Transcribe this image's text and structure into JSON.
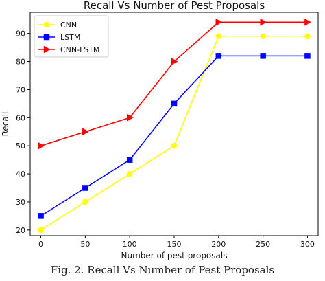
{
  "chart_data": {
    "type": "line",
    "title": "Recall Vs Number of Pest Proposals",
    "xlabel": "Number of pest proposals",
    "ylabel": "Recall",
    "x": [
      0,
      50,
      100,
      150,
      200,
      250,
      300
    ],
    "xlim": [
      -12,
      312
    ],
    "ylim": [
      18,
      97.5
    ],
    "xticks": [
      0,
      50,
      100,
      150,
      200,
      250,
      300
    ],
    "yticks": [
      20,
      30,
      40,
      50,
      60,
      70,
      80,
      90
    ],
    "grid": false,
    "legend_position": "top-left",
    "series": [
      {
        "name": "CNN",
        "color": "#ffff00",
        "marker": "circle",
        "values": [
          20,
          30,
          40,
          50,
          89,
          89,
          89
        ]
      },
      {
        "name": "LSTM",
        "color": "#0000ff",
        "marker": "square",
        "values": [
          25,
          35,
          45,
          65,
          82,
          82,
          82
        ]
      },
      {
        "name": "CNN-LSTM",
        "color": "#ff0000",
        "marker": "triangle-right",
        "values": [
          50,
          55,
          60,
          80,
          94,
          94,
          94
        ]
      }
    ]
  },
  "caption": "Fig. 2.   Recall Vs Number of Pest Proposals"
}
